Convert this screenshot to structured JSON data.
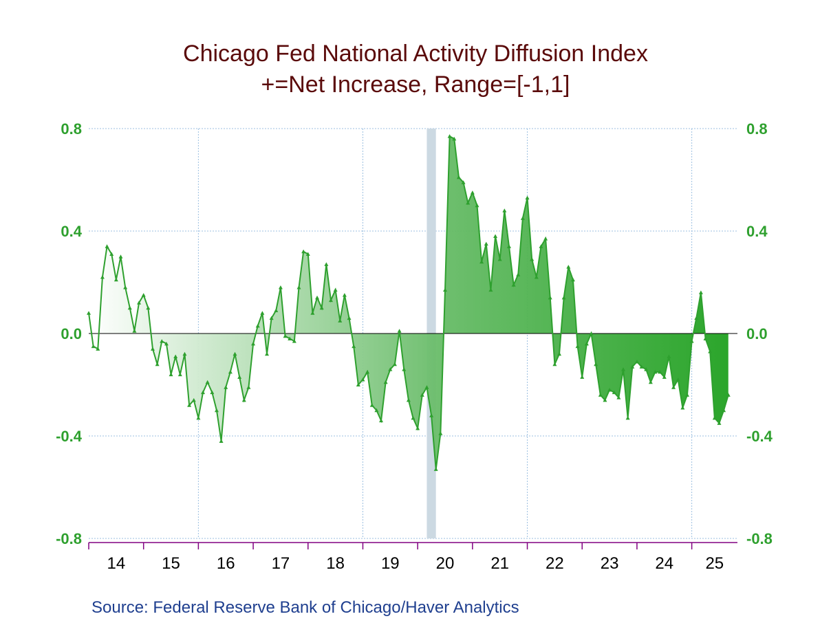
{
  "chart_data": {
    "type": "area",
    "title": "Chicago Fed National Activity Diffusion Index",
    "subtitle": "+=Net Increase, Range=[-1,1]",
    "source": "Source:  Federal Reserve Bank of Chicago/Haver Analytics",
    "ylim": [
      -0.8,
      0.8
    ],
    "yticks": [
      "0.8",
      "0.4",
      "0.0",
      "-0.4",
      "-0.8"
    ],
    "ytick_values": [
      0.8,
      0.4,
      0.0,
      -0.4,
      -0.8
    ],
    "xlim": [
      2014.0,
      2025.833
    ],
    "xtick_labels": [
      "14",
      "15",
      "16",
      "17",
      "18",
      "19",
      "20",
      "21",
      "22",
      "23",
      "24",
      "25"
    ],
    "grid": true,
    "recession_shading": [
      [
        2020.167,
        2020.333
      ]
    ],
    "colors": {
      "line": "#2ea02e",
      "title": "#5a0a0a",
      "tick": "#2ea02e",
      "axis": "#800080",
      "grid": "#9bbfe0",
      "source": "#1f3f8f",
      "recession": "#ccd9e2"
    },
    "series": [
      {
        "start": "2014-01",
        "frequency": "monthly",
        "values": [
          0.08,
          -0.05,
          -0.06,
          0.22,
          0.34,
          0.31,
          0.21,
          0.3,
          0.18,
          0.1,
          0.01,
          0.12,
          0.15,
          0.1,
          -0.06,
          -0.12,
          -0.03,
          -0.04,
          -0.16,
          -0.09,
          -0.16,
          -0.08,
          -0.28,
          -0.26,
          -0.33,
          -0.23,
          -0.19,
          -0.23,
          -0.3,
          -0.42,
          -0.21,
          -0.15,
          -0.08,
          -0.17,
          -0.26,
          -0.21,
          -0.04,
          0.03,
          0.08,
          -0.08,
          0.06,
          0.09,
          0.18,
          -0.01,
          -0.02,
          -0.03,
          0.18,
          0.32,
          0.31,
          0.08,
          0.14,
          0.1,
          0.27,
          0.13,
          0.17,
          0.05,
          0.15,
          0.06,
          -0.05,
          -0.2,
          -0.18,
          -0.15,
          -0.28,
          -0.3,
          -0.34,
          -0.19,
          -0.14,
          -0.12,
          0.01,
          -0.14,
          -0.26,
          -0.33,
          -0.37,
          -0.24,
          -0.21,
          -0.32,
          -0.53,
          -0.39,
          0.17,
          0.77,
          0.76,
          0.61,
          0.59,
          0.51,
          0.55,
          0.5,
          0.28,
          0.35,
          0.17,
          0.38,
          0.29,
          0.48,
          0.34,
          0.19,
          0.23,
          0.45,
          0.53,
          0.29,
          0.22,
          0.34,
          0.37,
          0.14,
          -0.12,
          -0.08,
          0.14,
          0.26,
          0.21,
          -0.05,
          -0.17,
          -0.04,
          0.0,
          -0.12,
          -0.24,
          -0.26,
          -0.22,
          -0.23,
          -0.25,
          -0.14,
          -0.33,
          -0.13,
          -0.11,
          -0.13,
          -0.14,
          -0.19,
          -0.15,
          -0.15,
          -0.17,
          -0.09,
          -0.21,
          -0.18,
          -0.29,
          -0.24,
          -0.03,
          0.06,
          0.16,
          -0.02,
          -0.07,
          -0.33,
          -0.35,
          -0.3,
          -0.24
        ]
      }
    ]
  }
}
